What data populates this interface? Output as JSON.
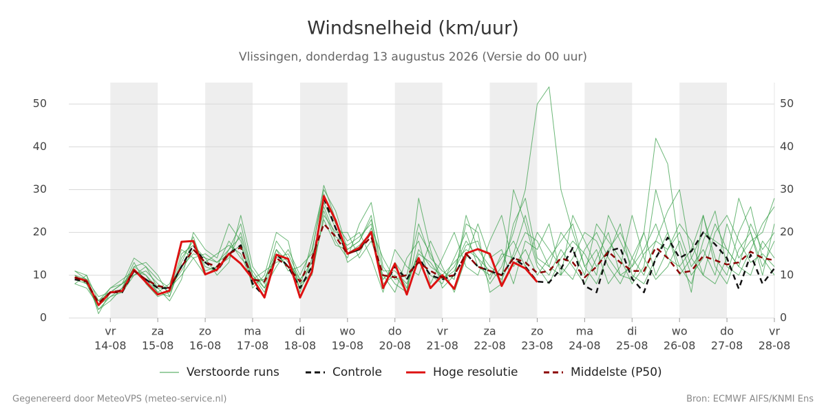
{
  "chart_data": {
    "type": "ensemble-line",
    "title": "Windsnelheid (km/uur)",
    "subtitle": "Vlissingen, donderdag 13 augustus 2026 (Versie do 00 uur)",
    "footer_left": "Gegenereerd door MeteoVPS (meteo-service.nl)",
    "footer_right": "Bron: ECMWF AIFS/KNMI Ens",
    "x": [
      13.25,
      13.5,
      13.75,
      14,
      14.25,
      14.5,
      14.75,
      15,
      15.25,
      15.5,
      15.75,
      16,
      16.25,
      16.5,
      16.75,
      17,
      17.25,
      17.5,
      17.75,
      18,
      18.25,
      18.5,
      18.75,
      19,
      19.25,
      19.5,
      19.75,
      20,
      20.25,
      20.5,
      20.75,
      21,
      21.25,
      21.5,
      21.75,
      22,
      22.25,
      22.5,
      22.75,
      23,
      23.25,
      23.5,
      23.75,
      24,
      24.25,
      24.5,
      24.75,
      25,
      25.25,
      25.5,
      25.75,
      26,
      26.25,
      26.5,
      26.75,
      27,
      27.25,
      27.5,
      27.75,
      28
    ],
    "xlim": [
      13.125,
      28
    ],
    "xticks": [
      {
        "value": 14,
        "label": [
          "vr",
          "14-08"
        ]
      },
      {
        "value": 15,
        "label": [
          "za",
          "15-08"
        ]
      },
      {
        "value": 16,
        "label": [
          "zo",
          "16-08"
        ]
      },
      {
        "value": 17,
        "label": [
          "ma",
          "17-08"
        ]
      },
      {
        "value": 18,
        "label": [
          "di",
          "18-08"
        ]
      },
      {
        "value": 19,
        "label": [
          "wo",
          "19-08"
        ]
      },
      {
        "value": 20,
        "label": [
          "do",
          "20-08"
        ]
      },
      {
        "value": 21,
        "label": [
          "vr",
          "21-08"
        ]
      },
      {
        "value": 22,
        "label": [
          "za",
          "22-08"
        ]
      },
      {
        "value": 23,
        "label": [
          "zo",
          "23-08"
        ]
      },
      {
        "value": 24,
        "label": [
          "ma",
          "24-08"
        ]
      },
      {
        "value": 25,
        "label": [
          "di",
          "25-08"
        ]
      },
      {
        "value": 26,
        "label": [
          "wo",
          "26-08"
        ]
      },
      {
        "value": 27,
        "label": [
          "do",
          "27-08"
        ]
      },
      {
        "value": 28,
        "label": [
          "vr",
          "28-08"
        ]
      }
    ],
    "shaded_days": [
      [
        14,
        15
      ],
      [
        16,
        17
      ],
      [
        18,
        19
      ],
      [
        20,
        21
      ],
      [
        22,
        23
      ],
      [
        24,
        25
      ],
      [
        26,
        27
      ]
    ],
    "ylim": [
      0,
      55
    ],
    "yticks": [
      0,
      10,
      20,
      30,
      40,
      50
    ],
    "grid": true,
    "legend": "bottom",
    "series": [
      {
        "name": "Verstoorde runs",
        "color": "#3a9f4a",
        "members": [
          [
            10,
            9,
            2,
            5,
            7,
            12,
            10,
            6,
            5,
            14,
            18,
            12,
            11,
            16,
            22,
            10,
            6,
            15,
            12,
            7,
            18,
            30,
            25,
            16,
            18,
            24,
            8,
            10,
            6,
            20,
            15,
            9,
            12,
            18,
            14,
            8,
            12,
            20,
            30,
            50,
            54,
            30,
            20,
            12,
            8,
            15,
            22,
            10,
            8,
            14,
            20,
            12,
            8,
            18,
            25,
            12,
            10,
            16,
            22,
            26
          ],
          [
            9,
            8,
            4,
            6,
            6,
            10,
            11,
            8,
            6,
            12,
            15,
            14,
            13,
            15,
            17,
            9,
            9,
            16,
            13,
            9,
            12,
            27,
            21,
            15,
            17,
            20,
            9,
            12,
            7,
            16,
            12,
            10,
            13,
            16,
            14,
            11,
            9,
            15,
            24,
            13,
            10,
            16,
            12,
            8,
            14,
            20,
            10,
            9,
            15,
            18,
            25,
            30,
            14,
            10,
            20,
            24,
            18,
            13,
            15,
            12
          ],
          [
            11,
            10,
            1,
            6,
            8,
            14,
            12,
            7,
            4,
            9,
            20,
            16,
            14,
            22,
            18,
            7,
            10,
            20,
            18,
            6,
            14,
            25,
            18,
            14,
            22,
            27,
            12,
            8,
            6,
            28,
            16,
            7,
            10,
            22,
            20,
            6,
            8,
            30,
            22,
            12,
            8,
            14,
            18,
            15,
            10,
            24,
            18,
            12,
            20,
            42,
            36,
            16,
            6,
            24,
            12,
            8,
            16,
            20,
            12,
            18
          ],
          [
            8,
            7,
            3,
            7,
            9,
            11,
            9,
            6,
            8,
            16,
            14,
            10,
            12,
            18,
            14,
            11,
            7,
            12,
            16,
            10,
            16,
            29,
            22,
            18,
            20,
            14,
            6,
            16,
            12,
            10,
            18,
            12,
            6,
            14,
            22,
            14,
            16,
            8,
            18,
            16,
            22,
            10,
            14,
            20,
            18,
            12,
            8,
            14,
            20,
            10,
            16,
            22,
            18,
            10,
            8,
            14,
            28,
            20,
            10,
            22
          ],
          [
            10,
            8,
            2,
            4,
            7,
            13,
            8,
            5,
            6,
            15,
            17,
            14,
            10,
            13,
            24,
            12,
            8,
            18,
            14,
            8,
            10,
            24,
            20,
            20,
            14,
            18,
            10,
            6,
            14,
            18,
            8,
            14,
            20,
            12,
            10,
            18,
            24,
            12,
            16,
            10,
            14,
            18,
            22,
            12,
            16,
            8,
            12,
            24,
            14,
            9,
            12,
            18,
            10,
            14,
            22,
            16,
            12,
            10,
            18,
            14
          ],
          [
            9,
            9,
            5,
            6,
            8,
            10,
            12,
            9,
            7,
            11,
            16,
            13,
            15,
            17,
            15,
            8,
            9,
            14,
            15,
            9,
            13,
            26,
            19,
            17,
            19,
            22,
            7,
            13,
            9,
            14,
            10,
            8,
            14,
            20,
            12,
            10,
            14,
            18,
            12,
            20,
            16,
            12,
            9,
            16,
            20,
            14,
            10,
            12,
            16,
            22,
            14,
            12,
            16,
            24,
            14,
            10,
            20,
            26,
            14,
            10
          ],
          [
            11,
            9,
            3,
            5,
            6,
            12,
            13,
            10,
            5,
            13,
            19,
            11,
            12,
            14,
            20,
            10,
            7,
            16,
            11,
            12,
            15,
            31,
            23,
            13,
            15,
            21,
            14,
            9,
            10,
            22,
            14,
            11,
            9,
            24,
            16,
            12,
            10,
            22,
            28,
            14,
            12,
            20,
            16,
            10,
            22,
            18,
            14,
            8,
            12,
            30,
            20,
            10,
            14,
            20,
            18,
            16,
            12,
            22,
            16,
            20
          ],
          [
            8,
            10,
            4,
            7,
            8,
            11,
            10,
            7,
            7,
            10,
            14,
            15,
            13,
            16,
            19,
            9,
            11,
            13,
            14,
            7,
            11,
            23,
            17,
            16,
            18,
            23,
            11,
            11,
            8,
            15,
            13,
            9,
            11,
            17,
            18,
            9,
            15,
            14,
            20,
            18,
            12,
            10,
            24,
            18,
            12,
            16,
            20,
            14,
            10,
            18,
            16,
            20,
            12,
            16,
            10,
            22,
            14,
            18,
            20,
            28
          ]
        ]
      },
      {
        "name": "Controle",
        "color": "#111111",
        "dash": true,
        "values": [
          9,
          8.5,
          3,
          6,
          6,
          11,
          9,
          7,
          7,
          12,
          17,
          13,
          11,
          15,
          17,
          8,
          5,
          15,
          12,
          7,
          12,
          28,
          21,
          15,
          16,
          20,
          7,
          12,
          9,
          14,
          10,
          9,
          10,
          15,
          12,
          11,
          10,
          14,
          12,
          8.5,
          8.3,
          11.5,
          16.4,
          7.5,
          6,
          15.6,
          16.4,
          9.2,
          6,
          14,
          18.8,
          14,
          15.6,
          20,
          17.2,
          14,
          6.8,
          14.8,
          8,
          11.6
        ]
      },
      {
        "name": "Hoge resolutie",
        "color": "#dd1111",
        "values": [
          9.5,
          8.7,
          3,
          6,
          6.3,
          11.3,
          8.4,
          5.5,
          6.4,
          17.8,
          18,
          10.2,
          11.3,
          15,
          12.7,
          9.2,
          4.8,
          14.8,
          13.8,
          4.8,
          10.8,
          28.5,
          22.8,
          15,
          16.4,
          20.1,
          7,
          12.7,
          5.5,
          14,
          7,
          10,
          6.8,
          15.1,
          16.1,
          15,
          7.5,
          13,
          11.6,
          8.4,
          null,
          null,
          null,
          null,
          null,
          null,
          null,
          null,
          null,
          null,
          null,
          null,
          null,
          null,
          null,
          null,
          null,
          null,
          null,
          null
        ]
      },
      {
        "name": "Middelste (P50)",
        "color": "#8b0000",
        "dash": true,
        "values": [
          9.5,
          8.5,
          3.5,
          6,
          6.5,
          11,
          9,
          7.5,
          7,
          12,
          16,
          13,
          12,
          15,
          16.5,
          9,
          8.5,
          14,
          12,
          8.5,
          14,
          22,
          19,
          15,
          16,
          19,
          10,
          9.5,
          10,
          13,
          11,
          9.5,
          10,
          15,
          12,
          11,
          10,
          14,
          13,
          10.5,
          11,
          14,
          13,
          9.5,
          12,
          15.5,
          13,
          11,
          11,
          16.5,
          14,
          10.5,
          11,
          14.5,
          13.5,
          12.5,
          13,
          15.5,
          14,
          13.5
        ]
      }
    ]
  }
}
